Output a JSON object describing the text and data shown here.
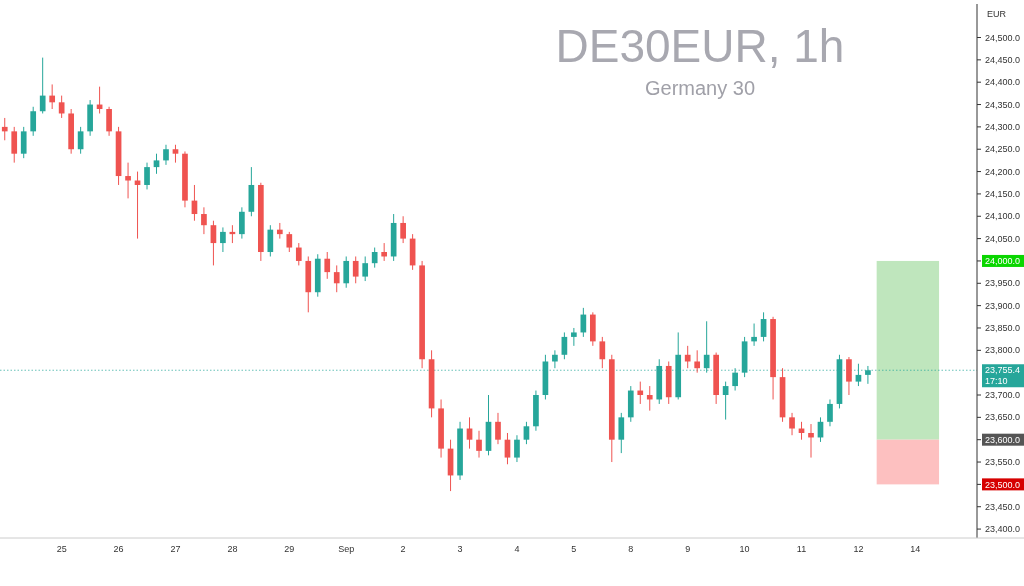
{
  "chart_data": {
    "type": "candlestick",
    "title": "DE30EUR, 1h",
    "subtitle": "Germany 30",
    "ylabel": "EUR",
    "categories": [
      null,
      null,
      null,
      null,
      null,
      null,
      "25",
      null,
      null,
      null,
      null,
      null,
      "26",
      null,
      null,
      null,
      null,
      null,
      "27",
      null,
      null,
      null,
      null,
      null,
      "28",
      null,
      null,
      null,
      null,
      null,
      "29",
      null,
      null,
      null,
      null,
      null,
      "Sep",
      null,
      null,
      null,
      null,
      null,
      "2",
      null,
      null,
      null,
      null,
      null,
      "3",
      null,
      null,
      null,
      null,
      null,
      "4",
      null,
      null,
      null,
      null,
      null,
      "5",
      null,
      null,
      null,
      null,
      null,
      "8",
      null,
      null,
      null,
      null,
      null,
      "9",
      null,
      null,
      null,
      null,
      null,
      "10",
      null,
      null,
      null,
      null,
      null,
      "11",
      null,
      null,
      null,
      null,
      null,
      "12",
      null,
      null,
      null,
      null,
      null,
      "14",
      null,
      null,
      null,
      null,
      null,
      null
    ],
    "ohlc": [
      [
        24300,
        24320,
        24270,
        24290
      ],
      [
        24290,
        24300,
        24220,
        24240
      ],
      [
        24240,
        24300,
        24230,
        24290
      ],
      [
        24290,
        24345,
        24280,
        24335
      ],
      [
        24335,
        24455,
        24330,
        24370
      ],
      [
        24370,
        24395,
        24340,
        24355
      ],
      [
        24355,
        24370,
        24320,
        24330
      ],
      [
        24330,
        24340,
        24240,
        24250
      ],
      [
        24250,
        24300,
        24240,
        24290
      ],
      [
        24290,
        24360,
        24280,
        24350
      ],
      [
        24350,
        24390,
        24330,
        24340
      ],
      [
        24340,
        24345,
        24280,
        24290
      ],
      [
        24290,
        24300,
        24170,
        24190
      ],
      [
        24190,
        24220,
        24140,
        24180
      ],
      [
        24180,
        24200,
        24050,
        24170
      ],
      [
        24170,
        24220,
        24160,
        24210
      ],
      [
        24210,
        24240,
        24195,
        24225
      ],
      [
        24225,
        24260,
        24215,
        24250
      ],
      [
        24250,
        24260,
        24220,
        24240
      ],
      [
        24240,
        24245,
        24120,
        24135
      ],
      [
        24135,
        24170,
        24090,
        24105
      ],
      [
        24105,
        24120,
        24060,
        24080
      ],
      [
        24080,
        24090,
        23990,
        24040
      ],
      [
        24040,
        24075,
        24020,
        24065
      ],
      [
        24065,
        24080,
        24040,
        24060
      ],
      [
        24060,
        24120,
        24050,
        24110
      ],
      [
        24110,
        24210,
        24100,
        24170
      ],
      [
        24170,
        24175,
        24000,
        24020
      ],
      [
        24020,
        24080,
        24010,
        24070
      ],
      [
        24070,
        24085,
        24050,
        24060
      ],
      [
        24060,
        24065,
        24020,
        24030
      ],
      [
        24030,
        24040,
        23990,
        24000
      ],
      [
        24000,
        24010,
        23885,
        23930
      ],
      [
        23930,
        24015,
        23920,
        24005
      ],
      [
        24005,
        24020,
        23960,
        23975
      ],
      [
        23975,
        23990,
        23930,
        23950
      ],
      [
        23950,
        24010,
        23940,
        24000
      ],
      [
        24000,
        24010,
        23950,
        23965
      ],
      [
        23965,
        24010,
        23955,
        23995
      ],
      [
        23995,
        24030,
        23985,
        24020
      ],
      [
        24020,
        24040,
        24000,
        24010
      ],
      [
        24010,
        24105,
        24000,
        24085
      ],
      [
        24085,
        24100,
        24040,
        24050
      ],
      [
        24050,
        24060,
        23980,
        23990
      ],
      [
        23990,
        24000,
        23760,
        23780
      ],
      [
        23780,
        23800,
        23650,
        23670
      ],
      [
        23670,
        23690,
        23560,
        23580
      ],
      [
        23580,
        23600,
        23485,
        23520
      ],
      [
        23520,
        23640,
        23510,
        23625
      ],
      [
        23625,
        23650,
        23580,
        23600
      ],
      [
        23600,
        23620,
        23560,
        23575
      ],
      [
        23575,
        23700,
        23565,
        23640
      ],
      [
        23640,
        23660,
        23590,
        23600
      ],
      [
        23600,
        23615,
        23545,
        23560
      ],
      [
        23560,
        23610,
        23550,
        23600
      ],
      [
        23600,
        23640,
        23590,
        23630
      ],
      [
        23630,
        23710,
        23620,
        23700
      ],
      [
        23700,
        23790,
        23690,
        23775
      ],
      [
        23775,
        23800,
        23760,
        23790
      ],
      [
        23790,
        23840,
        23780,
        23830
      ],
      [
        23830,
        23850,
        23810,
        23840
      ],
      [
        23840,
        23895,
        23830,
        23880
      ],
      [
        23880,
        23885,
        23810,
        23820
      ],
      [
        23820,
        23830,
        23760,
        23780
      ],
      [
        23780,
        23790,
        23550,
        23600
      ],
      [
        23600,
        23660,
        23570,
        23650
      ],
      [
        23650,
        23720,
        23640,
        23710
      ],
      [
        23710,
        23730,
        23680,
        23700
      ],
      [
        23700,
        23720,
        23665,
        23690
      ],
      [
        23690,
        23780,
        23680,
        23765
      ],
      [
        23765,
        23775,
        23680,
        23695
      ],
      [
        23695,
        23840,
        23690,
        23790
      ],
      [
        23790,
        23810,
        23760,
        23775
      ],
      [
        23775,
        23800,
        23750,
        23760
      ],
      [
        23760,
        23865,
        23750,
        23790
      ],
      [
        23790,
        23795,
        23680,
        23700
      ],
      [
        23700,
        23730,
        23645,
        23720
      ],
      [
        23720,
        23760,
        23710,
        23750
      ],
      [
        23750,
        23830,
        23740,
        23820
      ],
      [
        23820,
        23860,
        23810,
        23830
      ],
      [
        23830,
        23885,
        23820,
        23870
      ],
      [
        23870,
        23875,
        23690,
        23740
      ],
      [
        23740,
        23760,
        23640,
        23650
      ],
      [
        23650,
        23660,
        23610,
        23625
      ],
      [
        23625,
        23640,
        23600,
        23615
      ],
      [
        23615,
        23635,
        23560,
        23605
      ],
      [
        23605,
        23650,
        23595,
        23640
      ],
      [
        23640,
        23690,
        23630,
        23680
      ],
      [
        23680,
        23790,
        23670,
        23780
      ],
      [
        23780,
        23785,
        23700,
        23730
      ],
      [
        23730,
        23770,
        23720,
        23745
      ],
      [
        23745,
        23765,
        23725,
        23755.4
      ],
      null,
      null,
      null,
      null,
      null,
      null,
      null,
      null,
      null,
      null,
      null
    ],
    "ylim": [
      23380,
      24575
    ],
    "yticks": [
      {
        "value": 23400,
        "label": "23,400.0"
      },
      {
        "value": 23450,
        "label": "23,450.0"
      },
      {
        "value": 23500,
        "label": "23,500.0"
      },
      {
        "value": 23550,
        "label": "23,550.0"
      },
      {
        "value": 23600,
        "label": "23,600.0"
      },
      {
        "value": 23650,
        "label": "23,650.0"
      },
      {
        "value": 23700,
        "label": "23,700.0"
      },
      {
        "value": 23800,
        "label": "23,800.0"
      },
      {
        "value": 23850,
        "label": "23,850.0"
      },
      {
        "value": 23900,
        "label": "23,900.0"
      },
      {
        "value": 23950,
        "label": "23,950.0"
      },
      {
        "value": 24000,
        "label": "24,000.0"
      },
      {
        "value": 24050,
        "label": "24,050.0"
      },
      {
        "value": 24100,
        "label": "24,100.0"
      },
      {
        "value": 24150,
        "label": "24,150.0"
      },
      {
        "value": 24200,
        "label": "24,200.0"
      },
      {
        "value": 24250,
        "label": "24,250.0"
      },
      {
        "value": 24300,
        "label": "24,300.0"
      },
      {
        "value": 24350,
        "label": "24,350.0"
      },
      {
        "value": 24400,
        "label": "24,400.0"
      },
      {
        "value": 24450,
        "label": "24,450.0"
      },
      {
        "value": 24500,
        "label": "24,500.0"
      }
    ],
    "bands": [
      {
        "axis": "y",
        "from": 23600,
        "to": 24000,
        "color": "#bfe6bd"
      },
      {
        "axis": "y",
        "from": 23500,
        "to": 23600,
        "color": "#fdc0c0"
      }
    ],
    "ref_lines": [
      {
        "axis": "y",
        "value": 23755.4,
        "label": "23,755.4",
        "color": "#26a69a",
        "line_style": "dotted"
      }
    ],
    "annotations": [
      "17:10"
    ]
  }
}
